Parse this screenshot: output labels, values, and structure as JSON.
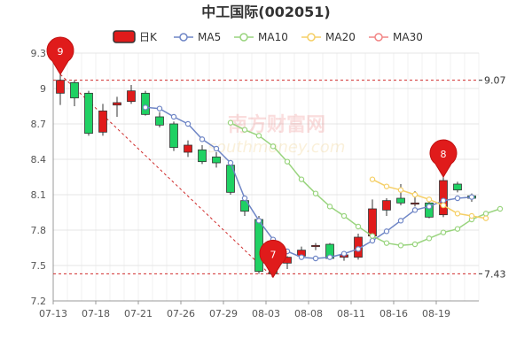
{
  "chart_data": {
    "type": "candlestick",
    "title": "中工国际(002051)",
    "legend": {
      "placement": "top",
      "items": [
        {
          "label": "日K",
          "color": "#e01b1b"
        },
        {
          "label": "MA5",
          "color": "#6f86c6"
        },
        {
          "label": "MA10",
          "color": "#99d47e"
        },
        {
          "label": "MA20",
          "color": "#f5cf66"
        },
        {
          "label": "MA30",
          "color": "#f28585"
        }
      ]
    },
    "y_ticks": [
      "7.2",
      "7.5",
      "7.8",
      "8.1",
      "8.4",
      "8.7",
      "9",
      "9.3"
    ],
    "y_tick_values": [
      7.2,
      7.5,
      7.8,
      8.1,
      8.4,
      8.7,
      9.0,
      9.3
    ],
    "ylim": [
      7.2,
      9.3
    ],
    "x_ticks": [
      {
        "label": "07-13",
        "index": 0
      },
      {
        "label": "07-18",
        "index": 3
      },
      {
        "label": "07-21",
        "index": 6
      },
      {
        "label": "07-26",
        "index": 9
      },
      {
        "label": "07-29",
        "index": 12
      },
      {
        "label": "08-03",
        "index": 15
      },
      {
        "label": "08-08",
        "index": 18
      },
      {
        "label": "08-11",
        "index": 21
      },
      {
        "label": "08-16",
        "index": 24
      },
      {
        "label": "08-19",
        "index": 27
      }
    ],
    "grid": true,
    "candles": [
      {
        "open": 8.96,
        "close": 9.07,
        "high": 9.12,
        "low": 8.86
      },
      {
        "open": 9.05,
        "close": 8.92,
        "high": 9.07,
        "low": 8.85
      },
      {
        "open": 8.96,
        "close": 8.62,
        "high": 8.98,
        "low": 8.6
      },
      {
        "open": 8.63,
        "close": 8.81,
        "high": 8.87,
        "low": 8.6
      },
      {
        "open": 8.86,
        "close": 8.88,
        "high": 8.93,
        "low": 8.76
      },
      {
        "open": 8.89,
        "close": 8.98,
        "high": 9.03,
        "low": 8.87
      },
      {
        "open": 8.96,
        "close": 8.78,
        "high": 8.98,
        "low": 8.77
      },
      {
        "open": 8.76,
        "close": 8.69,
        "high": 8.8,
        "low": 8.67
      },
      {
        "open": 8.7,
        "close": 8.5,
        "high": 8.72,
        "low": 8.47
      },
      {
        "open": 8.46,
        "close": 8.52,
        "high": 8.56,
        "low": 8.42
      },
      {
        "open": 8.48,
        "close": 8.38,
        "high": 8.52,
        "low": 8.36
      },
      {
        "open": 8.42,
        "close": 8.37,
        "high": 8.46,
        "low": 8.33
      },
      {
        "open": 8.35,
        "close": 8.12,
        "high": 8.38,
        "low": 8.1
      },
      {
        "open": 8.05,
        "close": 7.96,
        "high": 8.08,
        "low": 7.92
      },
      {
        "open": 7.89,
        "close": 7.45,
        "high": 7.92,
        "low": 7.43
      },
      {
        "open": 7.53,
        "close": 7.43,
        "high": 7.58,
        "low": 7.4
      },
      {
        "open": 7.52,
        "close": 7.57,
        "high": 7.58,
        "low": 7.47
      },
      {
        "open": 7.58,
        "close": 7.63,
        "high": 7.66,
        "low": 7.55
      },
      {
        "open": 7.66,
        "close": 7.67,
        "high": 7.69,
        "low": 7.63
      },
      {
        "open": 7.68,
        "close": 7.56,
        "high": 7.69,
        "low": 7.55
      },
      {
        "open": 7.57,
        "close": 7.59,
        "high": 7.62,
        "low": 7.54
      },
      {
        "open": 7.57,
        "close": 7.74,
        "high": 7.77,
        "low": 7.55
      },
      {
        "open": 7.75,
        "close": 7.98,
        "high": 8.06,
        "low": 7.73
      },
      {
        "open": 7.97,
        "close": 8.05,
        "high": 8.07,
        "low": 7.92
      },
      {
        "open": 8.07,
        "close": 8.03,
        "high": 8.19,
        "low": 8.01
      },
      {
        "open": 8.02,
        "close": 8.03,
        "high": 8.13,
        "low": 8.0
      },
      {
        "open": 8.03,
        "close": 7.91,
        "high": 8.05,
        "low": 7.9
      },
      {
        "open": 7.93,
        "close": 8.22,
        "high": 8.25,
        "low": 7.91
      },
      {
        "open": 8.19,
        "close": 8.14,
        "high": 8.21,
        "low": 8.12
      },
      {
        "open": 8.09,
        "close": 8.07,
        "high": 8.11,
        "low": 8.04
      }
    ],
    "ma_series": [
      {
        "name": "MA5",
        "color": "#6f86c6",
        "start": 6,
        "values": [
          8.84,
          8.83,
          8.76,
          8.7,
          8.57,
          8.49,
          8.37,
          8.07,
          7.88,
          7.72,
          7.62,
          7.57,
          7.56,
          7.57,
          7.6,
          7.64,
          7.71,
          7.79,
          7.88,
          7.97,
          8.0,
          8.05,
          8.07,
          8.08
        ]
      },
      {
        "name": "MA10",
        "color": "#99d47e",
        "start": 12,
        "values": [
          8.71,
          8.65,
          8.6,
          8.51,
          8.38,
          8.23,
          8.11,
          8.0,
          7.92,
          7.83,
          7.75,
          7.69,
          7.67,
          7.68,
          7.73,
          7.78,
          7.81,
          7.89,
          7.94,
          7.98
        ]
      },
      {
        "name": "MA20",
        "color": "#f5cf66",
        "start": 22,
        "values": [
          8.23,
          8.17,
          8.14,
          8.1,
          8.06,
          8.01,
          7.94,
          7.92,
          7.9
        ]
      }
    ],
    "ref_lines": [
      {
        "value": 9.07,
        "label": "9.07"
      },
      {
        "value": 7.43,
        "label": "7.43"
      }
    ],
    "markers": [
      {
        "label": "9",
        "index": 0,
        "value": 9.12
      },
      {
        "label": "7",
        "index": 15,
        "value": 7.4
      },
      {
        "label": "8",
        "index": 27,
        "value": 8.25
      }
    ],
    "trend_line": {
      "from_index": 0,
      "from_value": 9.12,
      "to_index": 15,
      "to_value": 7.4
    }
  },
  "watermark": {
    "main": "南方财富网",
    "sub": "southmoney.com"
  }
}
